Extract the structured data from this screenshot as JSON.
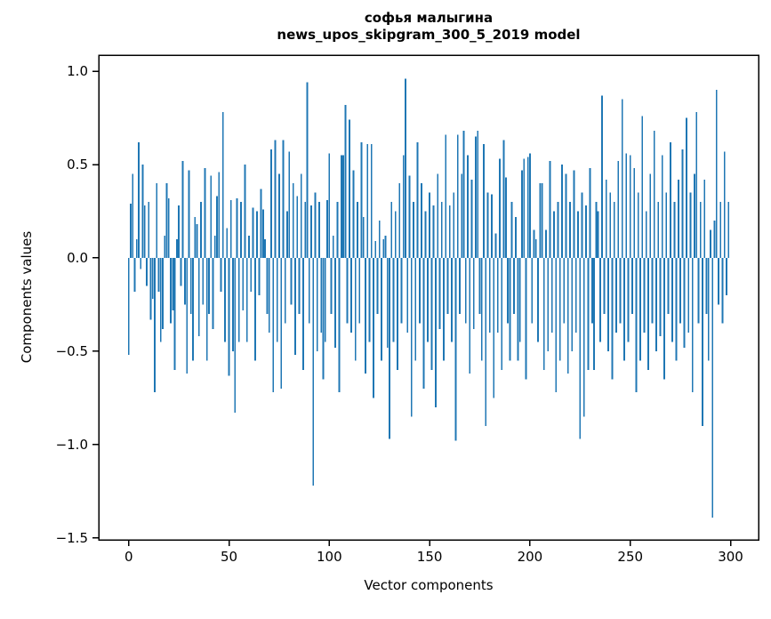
{
  "chart_data": {
    "type": "bar",
    "title_line1": "софья малыгина",
    "title_line2": "news_upos_skipgram_300_5_2019 model",
    "xlabel": "Vector components",
    "ylabel": "Components values",
    "x_start": 0,
    "n_components": 300,
    "xticks": [
      0,
      50,
      100,
      150,
      200,
      250,
      300
    ],
    "xtick_labels": [
      "0",
      "50",
      "100",
      "150",
      "200",
      "250",
      "300"
    ],
    "yticks": [
      1.0,
      0.5,
      0.0,
      -0.5,
      -1.0,
      -1.5
    ],
    "ytick_labels": [
      "1.0",
      "0.5",
      "0.0",
      "−0.5",
      "−1.0",
      "−1.5"
    ],
    "xlim": [
      -14.95,
      313.95
    ],
    "ylim": [
      -1.51,
      1.086
    ],
    "grid": false,
    "legend": null,
    "bar_color": "#1f77b4",
    "bar_width": 0.8,
    "axis_color": "#000000",
    "background_color": "#ffffff",
    "values": [
      -0.52,
      0.29,
      0.45,
      -0.18,
      0.1,
      0.62,
      -0.06,
      0.5,
      0.28,
      -0.15,
      0.3,
      -0.33,
      -0.22,
      -0.72,
      0.4,
      -0.18,
      -0.45,
      -0.38,
      0.12,
      0.4,
      0.32,
      -0.35,
      -0.28,
      -0.6,
      0.1,
      0.28,
      -0.15,
      0.52,
      -0.25,
      -0.62,
      0.47,
      -0.3,
      -0.55,
      0.22,
      0.18,
      -0.42,
      0.3,
      -0.25,
      0.48,
      -0.55,
      -0.3,
      0.44,
      -0.38,
      0.12,
      0.33,
      0.46,
      -0.18,
      0.78,
      -0.45,
      0.16,
      -0.63,
      0.31,
      -0.5,
      -0.83,
      0.32,
      -0.45,
      0.3,
      -0.28,
      0.5,
      -0.45,
      0.12,
      -0.18,
      0.27,
      -0.55,
      0.25,
      -0.2,
      0.37,
      0.26,
      0.1,
      -0.3,
      -0.4,
      0.58,
      -0.72,
      0.63,
      -0.45,
      0.45,
      -0.7,
      0.63,
      -0.35,
      0.25,
      0.57,
      -0.25,
      0.4,
      -0.52,
      0.33,
      -0.3,
      0.45,
      -0.6,
      0.3,
      0.94,
      -0.35,
      0.28,
      -1.22,
      0.35,
      -0.5,
      0.3,
      -0.4,
      -0.65,
      -0.45,
      0.31,
      0.56,
      -0.3,
      0.12,
      -0.48,
      0.3,
      -0.72,
      0.55,
      0.55,
      0.82,
      -0.35,
      0.74,
      -0.4,
      0.47,
      -0.55,
      0.3,
      -0.35,
      0.62,
      0.22,
      -0.62,
      0.61,
      -0.45,
      0.61,
      -0.75,
      0.09,
      -0.3,
      0.2,
      -0.55,
      0.1,
      0.12,
      -0.48,
      -0.97,
      0.3,
      -0.45,
      0.25,
      -0.6,
      0.4,
      -0.35,
      0.55,
      0.96,
      -0.4,
      0.44,
      -0.85,
      0.3,
      -0.55,
      0.62,
      -0.35,
      0.4,
      -0.7,
      0.25,
      -0.45,
      0.35,
      -0.6,
      0.28,
      -0.8,
      0.45,
      -0.38,
      0.3,
      -0.55,
      0.66,
      -0.3,
      0.28,
      -0.45,
      0.35,
      -0.98,
      0.66,
      -0.3,
      0.45,
      0.68,
      -0.35,
      0.55,
      -0.62,
      0.42,
      -0.38,
      0.65,
      0.68,
      -0.3,
      -0.55,
      0.61,
      -0.9,
      0.35,
      -0.4,
      0.34,
      -0.75,
      0.13,
      -0.4,
      0.53,
      -0.6,
      0.63,
      0.43,
      -0.35,
      -0.55,
      0.3,
      -0.3,
      0.22,
      -0.55,
      -0.45,
      0.47,
      0.53,
      -0.65,
      0.54,
      0.56,
      -0.35,
      0.15,
      0.1,
      -0.45,
      0.4,
      0.4,
      -0.6,
      0.15,
      -0.5,
      0.52,
      -0.4,
      0.25,
      -0.72,
      0.3,
      -0.55,
      0.5,
      -0.35,
      0.45,
      -0.62,
      0.3,
      -0.5,
      0.47,
      -0.4,
      0.25,
      -0.97,
      0.35,
      -0.85,
      0.28,
      -0.6,
      0.48,
      -0.35,
      -0.6,
      0.3,
      0.25,
      -0.45,
      0.87,
      -0.3,
      0.42,
      -0.5,
      0.35,
      -0.65,
      0.3,
      -0.4,
      0.52,
      -0.35,
      0.85,
      -0.55,
      0.56,
      -0.45,
      0.55,
      -0.3,
      0.48,
      -0.72,
      0.35,
      -0.55,
      0.76,
      -0.4,
      0.25,
      -0.6,
      0.45,
      -0.35,
      0.68,
      -0.5,
      0.3,
      -0.42,
      0.55,
      -0.65,
      0.35,
      -0.3,
      0.62,
      -0.45,
      0.3,
      -0.55,
      0.42,
      -0.35,
      0.58,
      -0.48,
      0.75,
      -0.4,
      0.35,
      -0.72,
      0.45,
      0.78,
      -0.35,
      0.3,
      -0.9,
      0.42,
      -0.3,
      -0.55,
      0.15,
      -1.39,
      0.2,
      0.9,
      -0.25,
      0.3,
      -0.35,
      0.57,
      -0.2,
      0.3
    ]
  }
}
